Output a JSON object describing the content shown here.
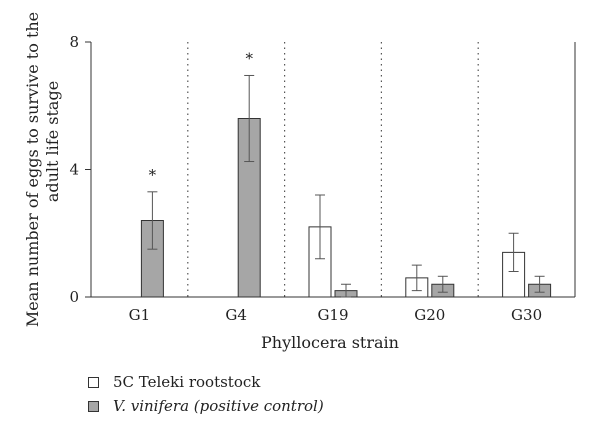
{
  "chart_data": {
    "type": "bar",
    "categories": [
      "G1",
      "G4",
      "G19",
      "G20",
      "G30"
    ],
    "series": [
      {
        "name": "5C Teleki rootstock",
        "color": "#ffffff",
        "values": [
          0,
          0,
          2.2,
          0.6,
          1.4
        ],
        "error": [
          0,
          0,
          1.0,
          0.4,
          0.6
        ],
        "asterisk": [
          false,
          false,
          false,
          false,
          false
        ]
      },
      {
        "name": "V. vinifera (positive control)",
        "color": "#a6a6a6",
        "values": [
          2.4,
          5.6,
          0.2,
          0.4,
          0.4
        ],
        "error": [
          0.9,
          1.35,
          0.2,
          0.25,
          0.25
        ],
        "asterisk": [
          true,
          true,
          false,
          false,
          false
        ]
      }
    ],
    "xlabel": "Phyllocera strain",
    "ylabel_lines": [
      "Mean number of eggs to survive to the",
      "adult life stage"
    ],
    "ylim": [
      0,
      8
    ],
    "yticks": [
      0,
      4,
      8
    ],
    "asterisk_symbol": "*",
    "separators": "dotted"
  },
  "legend": {
    "items": [
      {
        "label": "5C Teleki rootstock",
        "italic": false,
        "color": "#ffffff"
      },
      {
        "label": "V. vinifera (positive control)",
        "italic": true,
        "color": "#a6a6a6"
      }
    ]
  }
}
